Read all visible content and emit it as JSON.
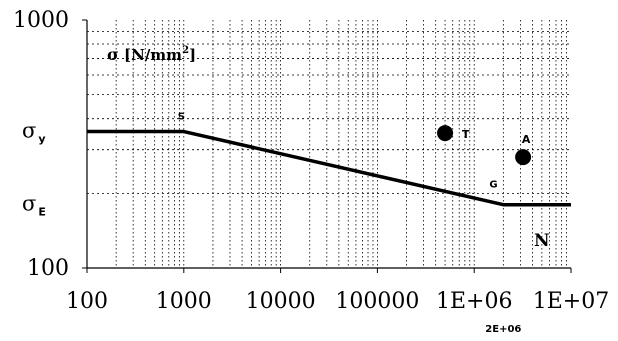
{
  "chart_data": {
    "type": "line",
    "title": "",
    "xlabel": "",
    "ylabel": "",
    "x_scale": "log",
    "y_scale": "log",
    "xlim": [
      100,
      10000000
    ],
    "ylim": [
      100,
      1000
    ],
    "grid": true,
    "x_ticks": [
      100,
      1000,
      10000,
      100000,
      1000000,
      10000000
    ],
    "x_tick_labels": [
      "100",
      "1000",
      "10000",
      "100000",
      "1E+06",
      "1E+07"
    ],
    "y_ticks": [
      100,
      1000
    ],
    "y_tick_labels": [
      "100",
      "1000"
    ],
    "series": [
      {
        "x": [
          100,
          1000,
          2000000,
          10000000
        ],
        "y": [
          355,
          355,
          180,
          180
        ]
      }
    ],
    "points": [
      {
        "label": "T",
        "x": 500000,
        "y": 350
      },
      {
        "label": "A",
        "x": 3200000,
        "y": 280
      }
    ],
    "annotations": {
      "unit_label": {
        "sigma": "σ",
        "text": "[N/mm",
        "sup": "2",
        "close": "]"
      },
      "sigma_y": {
        "sigma": "σ",
        "sub": "y",
        "y": 355
      },
      "sigma_E": {
        "sigma": "σ",
        "sub": "E",
        "y": 180
      },
      "S": {
        "text": "S",
        "x": 1000,
        "y": 355
      },
      "G": {
        "text": "G",
        "x": 2000000,
        "y": 180
      },
      "N": {
        "text": "N"
      },
      "x_extra": {
        "text": "2E+06",
        "x": 2000000
      }
    }
  }
}
